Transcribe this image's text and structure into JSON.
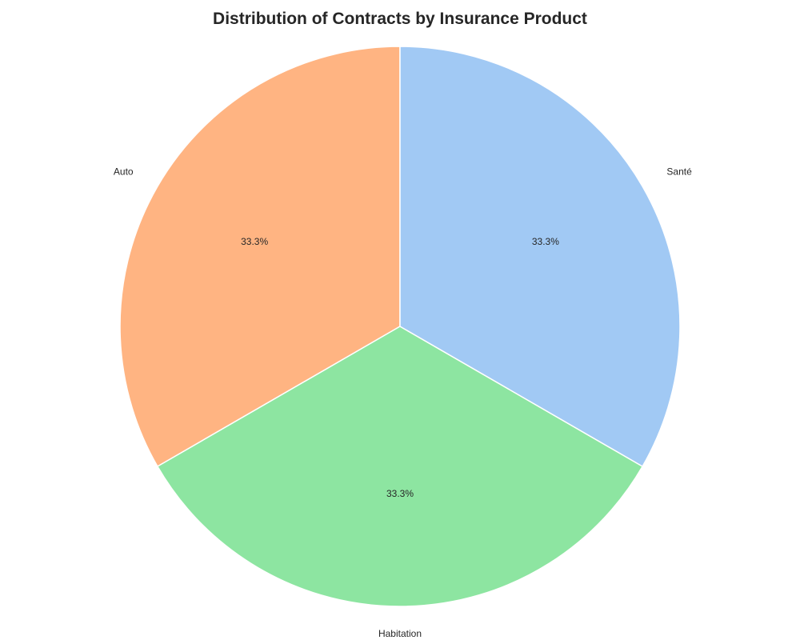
{
  "chart_data": {
    "type": "pie",
    "title": "Distribution of Contracts by Insurance Product",
    "categories": [
      "Auto",
      "Habitation",
      "Santé"
    ],
    "values": [
      1,
      1,
      1
    ],
    "percent_labels": [
      "33.3%",
      "33.3%",
      "33.3%"
    ],
    "colors": [
      "#ffb482",
      "#8de5a1",
      "#a1c9f4"
    ],
    "start_angle_deg": 270,
    "direction": "counterclockwise",
    "legend": "none"
  }
}
